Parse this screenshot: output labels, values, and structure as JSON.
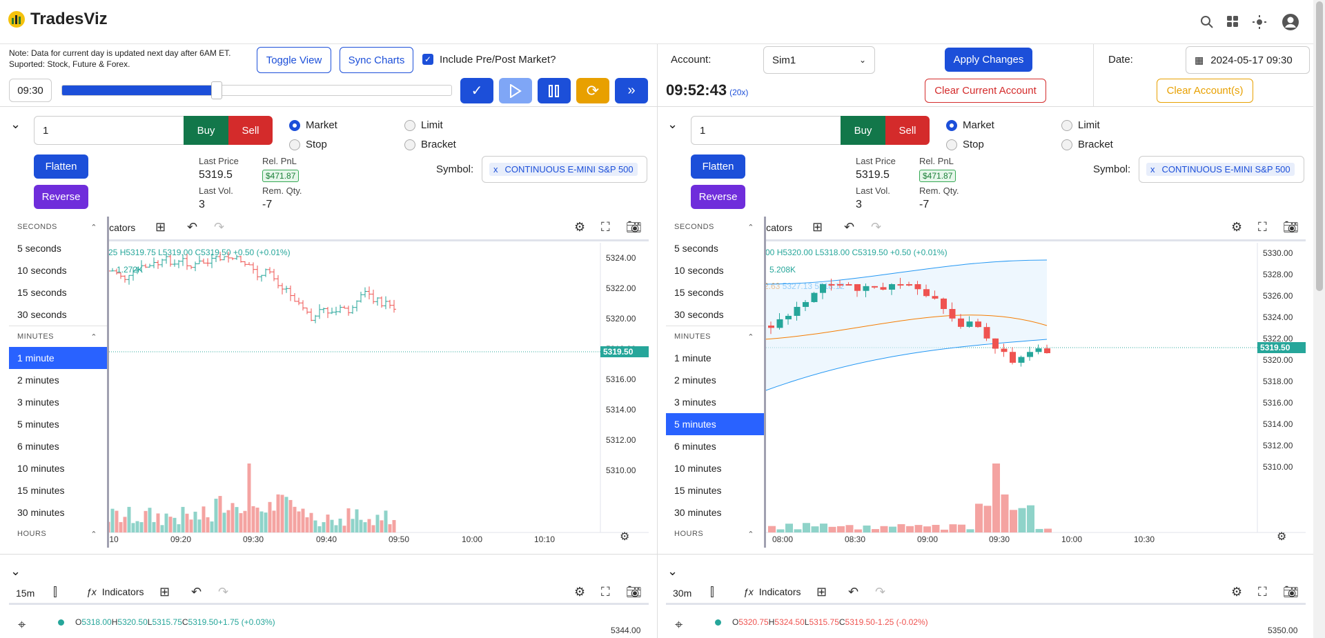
{
  "app": {
    "name": "TradesViz"
  },
  "note": {
    "line1": "Note: Data for current day is updated next day after 6AM ET.",
    "line2": "Suported: Stock, Future & Forex."
  },
  "controls": {
    "toggle_view": "Toggle View",
    "sync_charts": "Sync Charts",
    "include_prepost": "Include Pre/Post Market?",
    "time_input": "09:30",
    "progress": 0.39,
    "account_label": "Account:",
    "account_value": "Sim1",
    "apply_changes": "Apply Changes",
    "date_label": "Date:",
    "date_value": "2024-05-17 09:30",
    "clock": "09:52:43",
    "speed": "(20x)",
    "clear_current": "Clear Current Account",
    "clear_accounts": "Clear Account(s)"
  },
  "order": {
    "qty": "1",
    "buy": "Buy",
    "sell": "Sell",
    "market": "Market",
    "limit": "Limit",
    "stop": "Stop",
    "bracket": "Bracket",
    "flatten": "Flatten",
    "reverse": "Reverse",
    "last_price_label": "Last Price",
    "last_price": "5319.5",
    "rel_pnl_label": "Rel. PnL",
    "rel_pnl": "$471.87",
    "last_vol_label": "Last Vol.",
    "last_vol": "3",
    "rem_qty_label": "Rem. Qty.",
    "rem_qty": "-7",
    "symbol_label": "Symbol:",
    "symbol_x": "x",
    "symbol": "CONTINUOUS E-MINI S&P 500"
  },
  "interval_menu": {
    "seconds_header": "SECONDS",
    "seconds": [
      "5 seconds",
      "10 seconds",
      "15 seconds",
      "30 seconds"
    ],
    "minutes_header": "MINUTES",
    "minutes": [
      "1 minute",
      "2 minutes",
      "3 minutes",
      "5 minutes",
      "6 minutes",
      "10 minutes",
      "15 minutes",
      "30 minutes"
    ],
    "hours_header": "HOURS"
  },
  "chart_toolbar": {
    "indicators": "Indicators",
    "indicators_short": "icators"
  },
  "chart1": {
    "legend_ohlc": [
      "25",
      "H5319.75",
      "L5319.00",
      "C5319.50",
      "+0.50 (+0.01%)"
    ],
    "volume": "1.272K",
    "price_tag": "5319.50",
    "y_ticks": [
      "5324.00",
      "5322.00",
      "5320.00",
      "5318.00",
      "5316.00",
      "5314.00",
      "5312.00",
      "5310.00"
    ],
    "x_ticks": [
      ":10",
      "09:20",
      "09:30",
      "09:40",
      "09:50",
      "10:00",
      "10:10"
    ]
  },
  "chart2": {
    "legend_ohlc": [
      "00",
      "H5320.00",
      "L5318.00",
      "C5319.50",
      "+0.50 (+0.01%)"
    ],
    "volume": "5.208K",
    "bb": [
      "2.63",
      "5327.13",
      "5318.12"
    ],
    "price_tag": "5319.50",
    "y_ticks": [
      "5330.00",
      "5328.00",
      "5326.00",
      "5324.00",
      "5322.00",
      "5320.00",
      "5318.00",
      "5316.00",
      "5314.00",
      "5312.00",
      "5310.00"
    ],
    "x_ticks": [
      "08:00",
      "08:30",
      "09:00",
      "09:30",
      "10:00",
      "10:30"
    ]
  },
  "chart3": {
    "interval": "15m",
    "legend": [
      "O5318.00",
      "H5320.50",
      "L5315.75",
      "C5319.50",
      "+1.75 (+0.03%)"
    ],
    "y_top": "5344.00"
  },
  "chart4": {
    "interval": "30m",
    "legend": [
      "O5320.75",
      "H5324.50",
      "L5315.75",
      "C5319.50",
      "-1.25 (-0.02%)"
    ],
    "y_top": "5350.00"
  },
  "colors": {
    "up": "#26a69a",
    "down": "#ef5350",
    "accent": "#1c4fd9",
    "reverse": "#6f2ddb",
    "buy": "#12774a",
    "sell": "#d42b2b"
  }
}
